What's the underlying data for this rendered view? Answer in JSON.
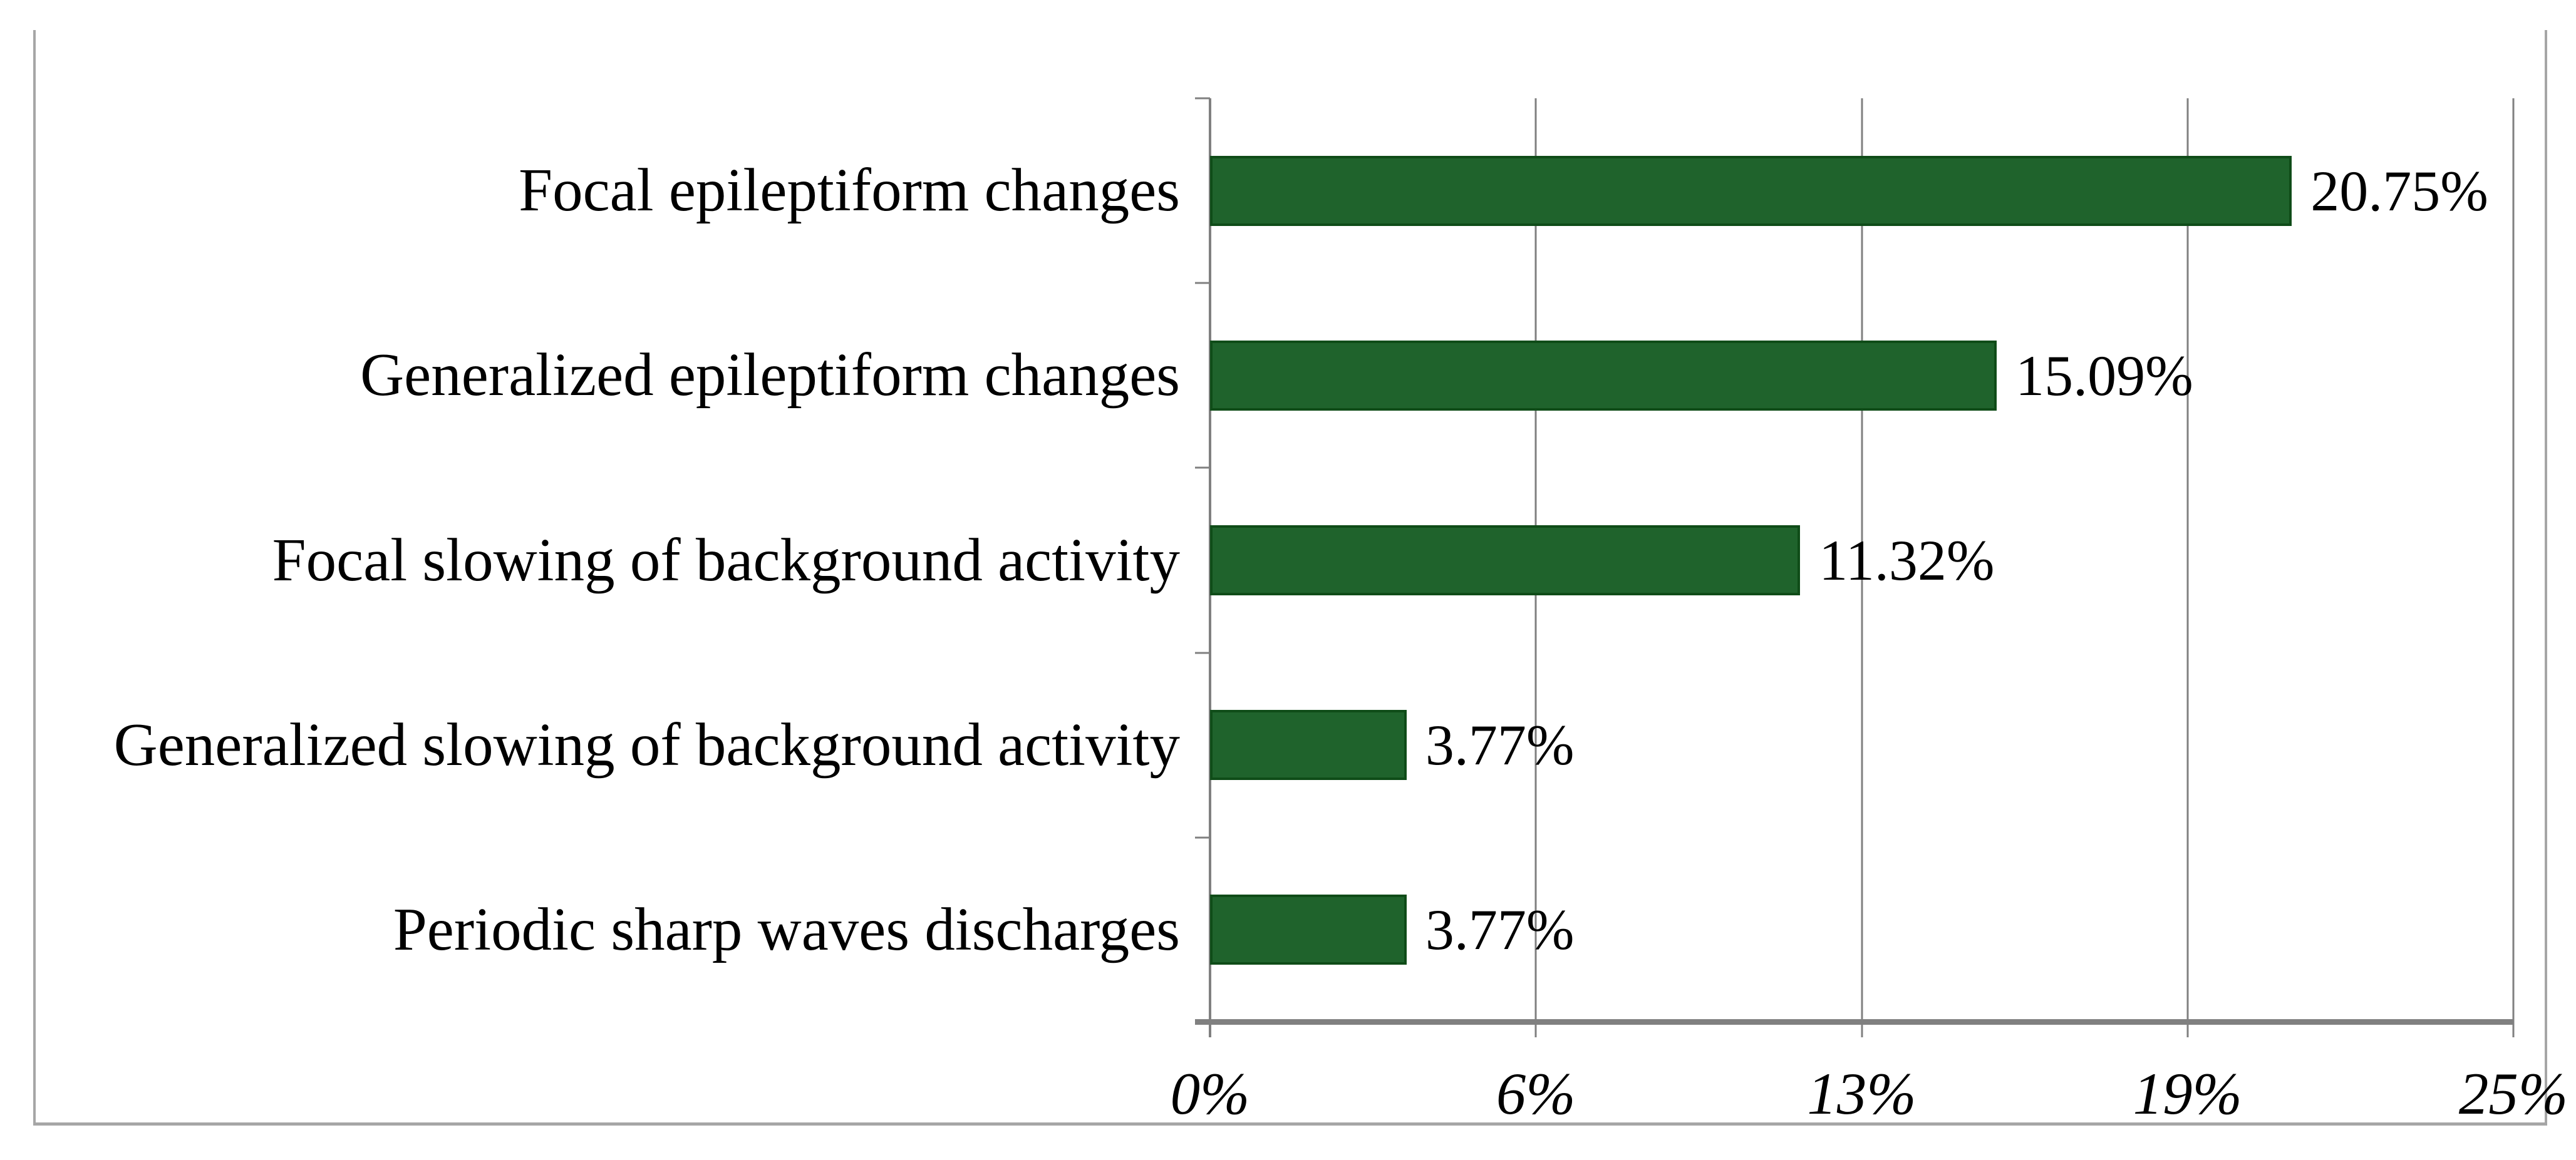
{
  "chart_data": {
    "type": "bar",
    "orientation": "horizontal",
    "title": "",
    "xlabel": "",
    "ylabel": "",
    "categories": [
      "Focal epileptiform changes",
      "Generalized epileptiform changes",
      "Focal slowing of background activity",
      "Generalized slowing of background activity",
      "Periodic sharp waves discharges"
    ],
    "values": [
      20.75,
      15.09,
      11.32,
      3.77,
      3.77
    ],
    "value_labels": [
      "20.75%",
      "15.09%",
      "11.32%",
      "3.77%",
      "3.77%"
    ],
    "xlim": [
      0,
      25
    ],
    "x_ticks": [
      {
        "value": 0,
        "label": "0%"
      },
      {
        "value": 6.25,
        "label": "6%"
      },
      {
        "value": 12.5,
        "label": "13%"
      },
      {
        "value": 18.75,
        "label": "19%"
      },
      {
        "value": 25,
        "label": "25%"
      }
    ],
    "grid": "vertical-gridlines-on",
    "legend": "none",
    "colors": {
      "bar_fill": "#1f632c",
      "bar_border": "#0f4c18",
      "gridline": "#808080",
      "axis_line": "#808080",
      "frame_border": "#a6a6a6",
      "text": "#000000",
      "background": "#ffffff"
    }
  }
}
